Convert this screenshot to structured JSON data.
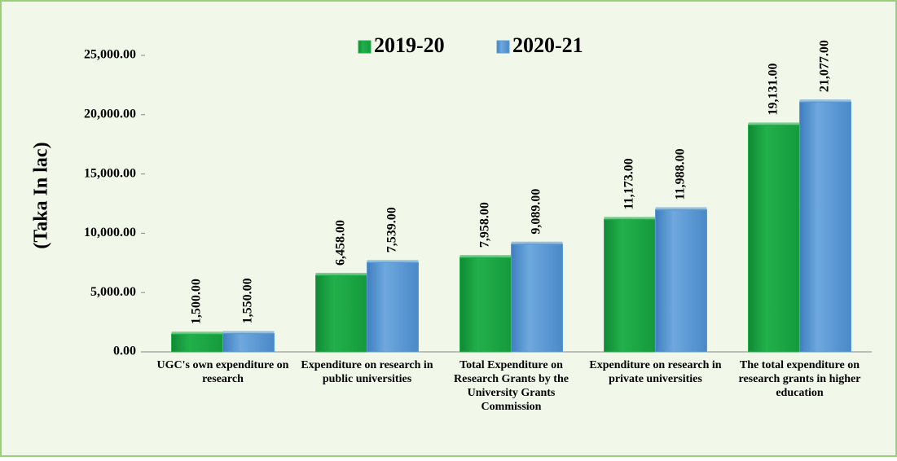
{
  "chart_data": {
    "type": "bar",
    "y_label": "(Taka In lac)",
    "categories": [
      "UGC's own expenditure on research",
      "Expenditure on research in public universities",
      "Total Expenditure on Research Grants by the University Grants Commission",
      "Expenditure on research in private universities",
      "The total expenditure on research grants in higher education"
    ],
    "series": [
      {
        "name": "2019-20",
        "color": "#22b04b",
        "values": [
          1500,
          6458,
          7958,
          11173,
          19131
        ],
        "value_labels": [
          "1,500.00",
          "6,458.00",
          "7,958.00",
          "11,173.00",
          "19,131.00"
        ]
      },
      {
        "name": "2020-21",
        "color": "#5b9bd5",
        "values": [
          1550,
          7539,
          9089,
          11988,
          21077
        ],
        "value_labels": [
          "1,550.00",
          "7,539.00",
          "9,089.00",
          "11,988.00",
          "21,077.00"
        ]
      }
    ],
    "ylim": [
      0,
      25000
    ],
    "yticks": [
      {
        "value": 0,
        "label": "0.00"
      },
      {
        "value": 5000,
        "label": "5,000.00"
      },
      {
        "value": 10000,
        "label": "10,000.00"
      },
      {
        "value": 15000,
        "label": "15,000.00"
      },
      {
        "value": 20000,
        "label": "20,000.00"
      },
      {
        "value": 25000,
        "label": "25,000.00"
      }
    ],
    "legend": "top"
  }
}
